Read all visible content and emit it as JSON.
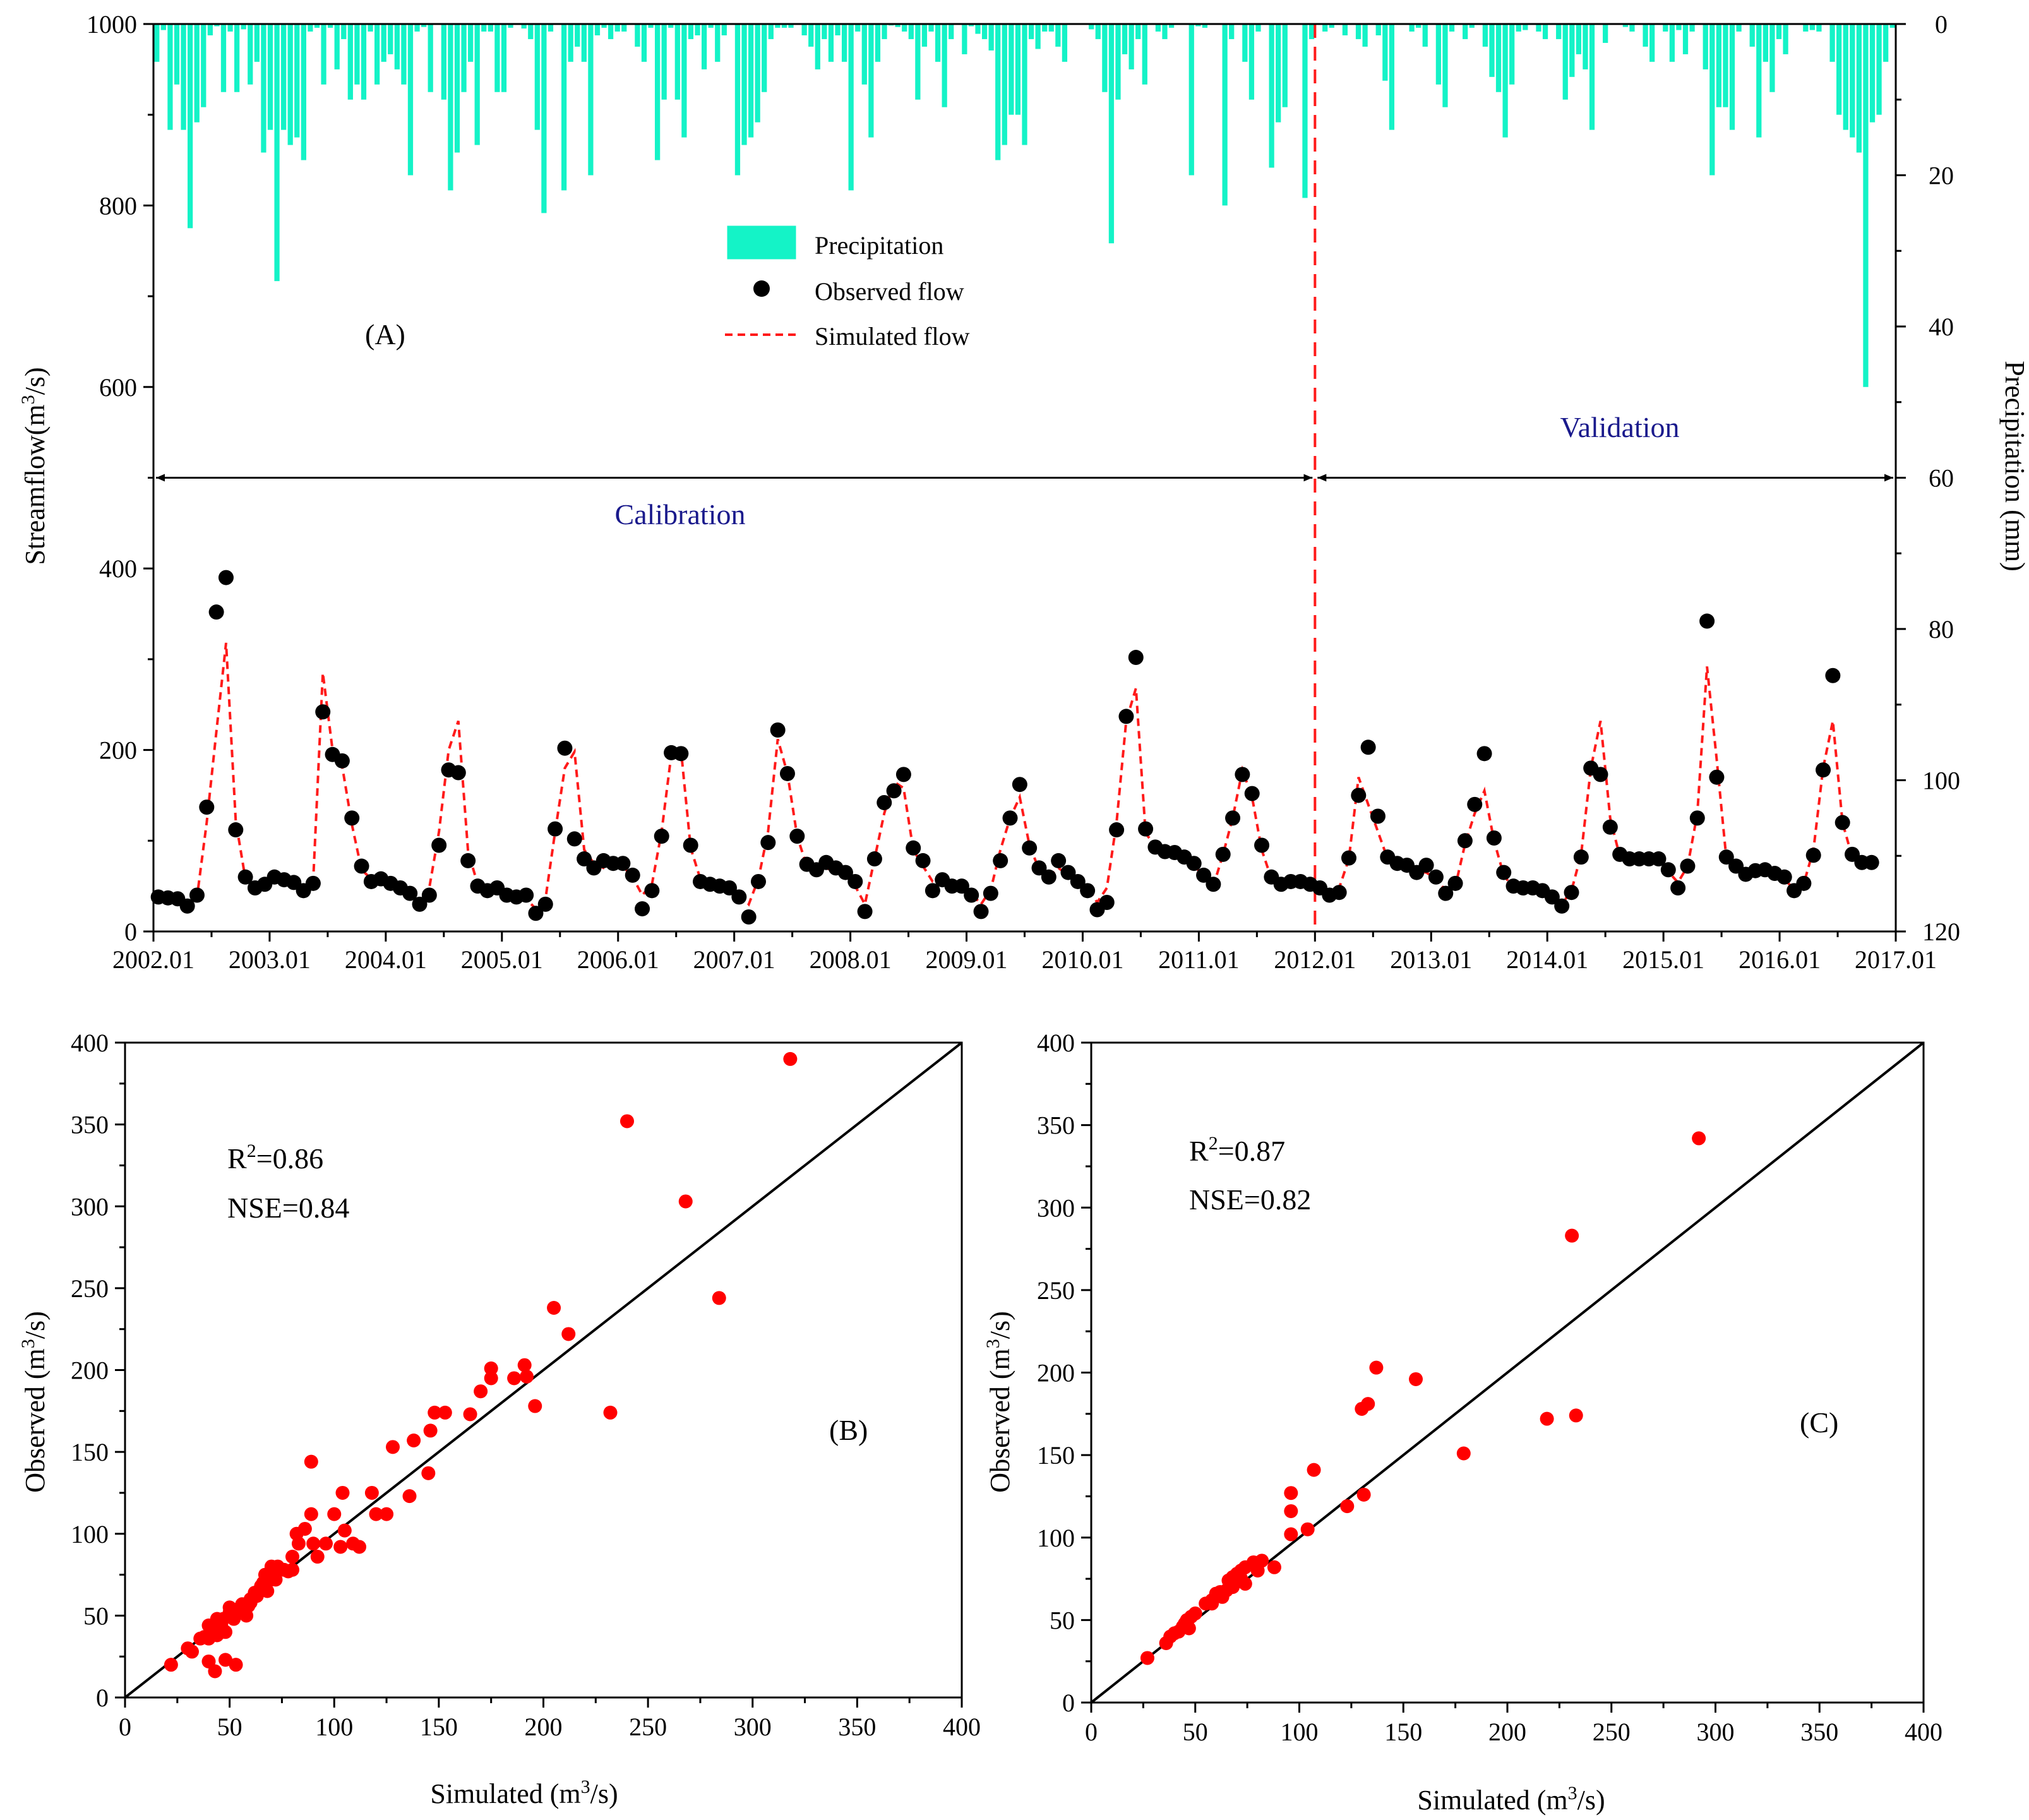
{
  "colors": {
    "precip_fill": "#14F3C7",
    "observed": "#000000",
    "simulated": "#FF1A1A",
    "scatter": "#FF0000",
    "period_label": "#1A1A8C",
    "axis": "#000000"
  },
  "chart_data": [
    {
      "id": "A",
      "type": "bar+scatter+line",
      "panel_label": "(A)",
      "ylabel_left_parts": [
        "Streamflow(m",
        "3",
        "/s)"
      ],
      "ylabel_right": "Precipitation (mm)",
      "ylim_left": [
        0,
        1000
      ],
      "yticks_left": [
        0,
        200,
        400,
        600,
        800,
        1000
      ],
      "ylim_right_inverted": [
        0,
        120
      ],
      "yticks_right": [
        0,
        20,
        40,
        60,
        80,
        100,
        120
      ],
      "xlim_months": [
        0,
        180
      ],
      "x_tick_labels": [
        "2002.01",
        "2003.01",
        "2004.01",
        "2005.01",
        "2006.01",
        "2007.01",
        "2008.01",
        "2009.01",
        "2010.01",
        "2011.01",
        "2012.01",
        "2013.01",
        "2014.01",
        "2015.01",
        "2016.01",
        "2017.01"
      ],
      "legend": {
        "position": "top-center",
        "entries": [
          {
            "name": "Precipitation",
            "symbol": "bar"
          },
          {
            "name": "Observed flow",
            "symbol": "dot"
          },
          {
            "name": "Simulated flow",
            "symbol": "dashed-line"
          }
        ]
      },
      "calibration_label": "Calibration",
      "validation_label": "Validation",
      "split_month": 120,
      "period_arrow_flow_value": 500,
      "series": [
        {
          "name": "Precipitation",
          "unit": "mm",
          "axis": "right",
          "values": [
            5,
            0.8,
            14,
            8,
            14,
            27,
            13,
            11,
            1.5,
            0.3,
            9,
            1,
            9,
            0.7,
            8,
            5,
            17,
            14,
            34,
            14,
            16,
            15,
            18,
            1,
            0.5,
            8,
            0.5,
            6,
            2,
            10,
            8,
            10,
            1,
            8,
            5,
            4,
            6,
            8,
            20,
            1,
            0.4,
            9,
            0,
            10,
            22,
            17,
            9,
            5,
            16,
            1,
            1,
            9,
            9,
            0.5,
            0,
            0.6,
            2,
            14,
            25,
            1,
            0,
            22,
            5,
            3,
            5,
            20,
            1.5,
            0.5,
            2,
            1,
            1,
            0,
            3,
            5,
            0.5,
            18,
            10,
            0.5,
            10,
            15,
            2,
            1.5,
            6,
            0.5,
            5,
            1.5,
            0,
            20,
            16,
            15,
            13,
            9,
            2,
            0.5,
            0.5,
            0.5,
            0,
            1.5,
            3,
            6,
            2,
            5,
            1.5,
            5,
            22,
            1,
            8,
            15,
            5,
            2,
            0.2,
            0.4,
            1,
            2,
            10,
            3,
            1,
            5,
            11,
            2,
            0,
            4,
            0.3,
            1.3,
            2,
            3.5,
            18,
            16,
            12,
            12,
            16,
            2,
            3.3,
            1,
            1,
            3,
            5,
            0,
            0,
            0,
            0.7,
            2,
            9,
            29,
            10,
            4,
            6,
            2,
            8,
            0,
            1,
            2,
            0.5,
            0,
            0,
            20,
            0.3,
            0.5,
            0,
            0,
            24,
            2,
            0,
            5,
            10,
            1,
            0,
            19,
            13,
            11,
            0,
            0,
            23,
            2,
            0,
            1,
            0.5,
            0,
            1.5,
            0,
            2,
            3,
            0,
            1.5,
            7.5,
            14,
            0,
            0,
            1,
            0.5,
            3,
            0,
            8,
            11,
            1,
            0,
            2,
            0.5,
            0,
            3,
            7,
            9,
            15,
            8,
            1,
            0.8,
            0.1,
            1,
            2,
            0,
            2,
            10,
            7,
            4,
            6,
            14,
            0,
            2.5,
            0,
            0,
            0.4,
            1,
            0,
            3,
            5,
            0,
            1,
            5,
            0.8,
            4,
            1,
            0,
            6,
            20,
            11,
            11,
            14,
            1,
            0,
            3,
            15,
            5,
            9,
            2,
            4,
            0,
            0,
            1,
            0.8,
            1,
            0,
            5,
            12,
            14,
            15,
            17,
            48,
            13,
            12,
            5,
            0.5
          ]
        },
        {
          "name": "Observed flow",
          "unit": "m3/s",
          "axis": "left",
          "values": [
            38,
            37,
            36,
            28,
            40,
            137,
            352,
            390,
            112,
            60,
            48,
            52,
            60,
            57,
            54,
            45,
            53,
            242,
            195,
            188,
            125,
            72,
            55,
            58,
            53,
            48,
            42,
            30,
            40,
            95,
            178,
            175,
            78,
            50,
            45,
            48,
            40,
            38,
            40,
            20,
            30,
            113,
            202,
            102,
            80,
            70,
            78,
            75,
            75,
            62,
            25,
            45,
            105,
            197,
            196,
            95,
            55,
            52,
            50,
            48,
            38,
            16,
            55,
            98,
            222,
            174,
            105,
            74,
            68,
            76,
            70,
            65,
            55,
            22,
            80,
            142,
            155,
            173,
            92,
            78,
            45,
            57,
            50,
            50,
            40,
            22,
            42,
            78,
            125,
            162,
            92,
            70,
            60,
            78,
            65,
            55,
            45,
            24,
            32,
            112,
            237,
            302,
            113,
            93,
            88,
            87,
            82,
            75,
            62,
            52,
            85,
            125,
            173,
            152,
            95,
            60,
            52,
            55,
            55,
            52,
            48,
            40,
            43,
            81,
            150,
            203,
            127,
            82,
            75,
            73,
            65,
            73,
            60,
            42,
            53,
            100,
            140,
            196,
            103,
            65,
            50,
            48,
            48,
            45,
            38,
            28,
            43,
            82,
            180,
            173,
            115,
            85,
            80,
            80,
            80,
            80,
            68,
            48,
            72,
            125,
            342,
            170,
            82,
            72,
            63,
            67,
            68,
            64,
            60,
            45,
            53,
            84,
            178,
            282,
            120,
            85,
            76,
            76
          ]
        },
        {
          "name": "Simulated flow",
          "unit": "m3/s",
          "axis": "left",
          "values": [
            34,
            33,
            32,
            30,
            38,
            120,
            220,
            318,
            122,
            58,
            50,
            50,
            56,
            55,
            52,
            48,
            55,
            285,
            200,
            182,
            118,
            68,
            58,
            56,
            54,
            50,
            45,
            30,
            48,
            110,
            200,
            232,
            88,
            52,
            45,
            42,
            40,
            38,
            36,
            25,
            36,
            110,
            180,
            198,
            90,
            75,
            70,
            72,
            72,
            60,
            40,
            52,
            110,
            195,
            200,
            92,
            58,
            55,
            53,
            48,
            42,
            30,
            58,
            110,
            212,
            174,
            105,
            72,
            68,
            70,
            65,
            62,
            50,
            30,
            80,
            130,
            165,
            158,
            90,
            72,
            55,
            54,
            52,
            48,
            42,
            30,
            46,
            90,
            125,
            148,
            95,
            68,
            60,
            70,
            62,
            55,
            48,
            32,
            48,
            120,
            232,
            268,
            108,
            95,
            88,
            85,
            80,
            72,
            62,
            50,
            85,
            125,
            178,
            148,
            90,
            58,
            50,
            52,
            52,
            50,
            46,
            44,
            48,
            80,
            170,
            140,
            110,
            80,
            72,
            70,
            66,
            65,
            58,
            45,
            50,
            96,
            130,
            155,
            100,
            62,
            48,
            45,
            45,
            42,
            40,
            30,
            45,
            85,
            180,
            232,
            125,
            82,
            78,
            78,
            76,
            74,
            66,
            54,
            72,
            130,
            292,
            190,
            80,
            72,
            62,
            64,
            66,
            62,
            58,
            46,
            53,
            90,
            180,
            232,
            120,
            82,
            72,
            70
          ]
        }
      ]
    },
    {
      "id": "B",
      "type": "scatter",
      "panel_label": "(B)",
      "xlabel_parts": [
        "Simulated (m",
        "3",
        "/s)"
      ],
      "ylabel_parts": [
        "Observed (m",
        "3",
        "/s)"
      ],
      "xlim": [
        0,
        400
      ],
      "ylim": [
        0,
        400
      ],
      "ticks": [
        0,
        50,
        100,
        150,
        200,
        250,
        300,
        350,
        400
      ],
      "r2_prefix": "R",
      "r2_sup": "2",
      "r2_value": "=0.86",
      "nse_text": "NSE=0.84",
      "reference_line": "1:1",
      "points": [
        [
          318,
          390
        ],
        [
          240,
          352
        ],
        [
          268,
          303
        ],
        [
          284,
          244
        ],
        [
          205,
          238
        ],
        [
          212,
          222
        ],
        [
          232,
          174
        ],
        [
          175,
          201
        ],
        [
          175,
          195
        ],
        [
          191,
          203
        ],
        [
          186,
          195
        ],
        [
          192,
          196
        ],
        [
          196,
          178
        ],
        [
          170,
          187
        ],
        [
          148,
          174
        ],
        [
          153,
          174
        ],
        [
          165,
          173
        ],
        [
          128,
          153
        ],
        [
          138,
          157
        ],
        [
          146,
          163
        ],
        [
          145,
          137
        ],
        [
          89,
          144
        ],
        [
          136,
          123
        ],
        [
          118,
          125
        ],
        [
          104,
          125
        ],
        [
          125,
          112
        ],
        [
          120,
          112
        ],
        [
          105,
          102
        ],
        [
          109,
          94
        ],
        [
          112,
          92
        ],
        [
          103,
          92
        ],
        [
          96,
          94
        ],
        [
          90,
          94
        ],
        [
          92,
          86
        ],
        [
          100,
          112
        ],
        [
          89,
          112
        ],
        [
          86,
          103
        ],
        [
          82,
          100
        ],
        [
          83,
          94
        ],
        [
          80,
          86
        ],
        [
          73,
          80
        ],
        [
          78,
          77
        ],
        [
          80,
          78
        ],
        [
          70,
          80
        ],
        [
          72,
          76
        ],
        [
          67,
          75
        ],
        [
          66,
          70
        ],
        [
          72,
          72
        ],
        [
          65,
          68
        ],
        [
          62,
          64
        ],
        [
          60,
          60
        ],
        [
          59,
          56
        ],
        [
          56,
          57
        ],
        [
          58,
          50
        ],
        [
          54,
          54
        ],
        [
          52,
          53
        ],
        [
          50,
          52
        ],
        [
          47,
          48
        ],
        [
          45,
          45
        ],
        [
          44,
          48
        ],
        [
          46,
          44
        ],
        [
          50,
          55
        ],
        [
          52,
          48
        ],
        [
          46,
          40
        ],
        [
          42,
          42
        ],
        [
          40,
          44
        ],
        [
          44,
          38
        ],
        [
          40,
          36
        ],
        [
          36,
          36
        ],
        [
          38,
          37
        ],
        [
          45,
          42
        ],
        [
          48,
          40
        ],
        [
          50,
          50
        ],
        [
          30,
          30
        ],
        [
          32,
          28
        ],
        [
          22,
          20
        ],
        [
          40,
          22
        ],
        [
          48,
          23
        ],
        [
          53,
          20
        ],
        [
          43,
          16
        ],
        [
          55,
          52
        ],
        [
          60,
          58
        ],
        [
          63,
          62
        ],
        [
          68,
          65
        ],
        [
          70,
          72
        ],
        [
          76,
          78
        ]
      ]
    },
    {
      "id": "C",
      "type": "scatter",
      "panel_label": "(C)",
      "xlabel_parts": [
        "Simulated (m",
        "3",
        "/s)"
      ],
      "ylabel_parts": [
        "Observed (m",
        "3",
        "/s)"
      ],
      "xlim": [
        0,
        400
      ],
      "ylim": [
        0,
        400
      ],
      "ticks": [
        0,
        50,
        100,
        150,
        200,
        250,
        300,
        350,
        400
      ],
      "r2_prefix": "R",
      "r2_sup": "2",
      "r2_value": "=0.87",
      "nse_text": "NSE=0.82",
      "reference_line": "1:1",
      "points": [
        [
          292,
          342
        ],
        [
          231,
          283
        ],
        [
          137,
          203
        ],
        [
          156,
          196
        ],
        [
          130,
          178
        ],
        [
          133,
          181
        ],
        [
          233,
          174
        ],
        [
          219,
          172
        ],
        [
          179,
          151
        ],
        [
          131,
          126
        ],
        [
          96,
          127
        ],
        [
          107,
          141
        ],
        [
          123,
          119
        ],
        [
          96,
          116
        ],
        [
          104,
          105
        ],
        [
          96,
          102
        ],
        [
          88,
          82
        ],
        [
          82,
          86
        ],
        [
          78,
          85
        ],
        [
          74,
          82
        ],
        [
          72,
          80
        ],
        [
          70,
          78
        ],
        [
          72,
          75
        ],
        [
          68,
          76
        ],
        [
          66,
          74
        ],
        [
          70,
          74
        ],
        [
          62,
          67
        ],
        [
          60,
          66
        ],
        [
          63,
          64
        ],
        [
          58,
          62
        ],
        [
          50,
          54
        ],
        [
          48,
          52
        ],
        [
          46,
          50
        ],
        [
          45,
          48
        ],
        [
          44,
          46
        ],
        [
          47,
          45
        ],
        [
          42,
          43
        ],
        [
          40,
          42
        ],
        [
          38,
          40
        ],
        [
          36,
          36
        ],
        [
          27,
          27
        ],
        [
          46,
          48
        ],
        [
          55,
          60
        ],
        [
          74,
          72
        ],
        [
          80,
          80
        ],
        [
          68,
          70
        ],
        [
          65,
          68
        ],
        [
          58,
          60
        ]
      ]
    }
  ]
}
